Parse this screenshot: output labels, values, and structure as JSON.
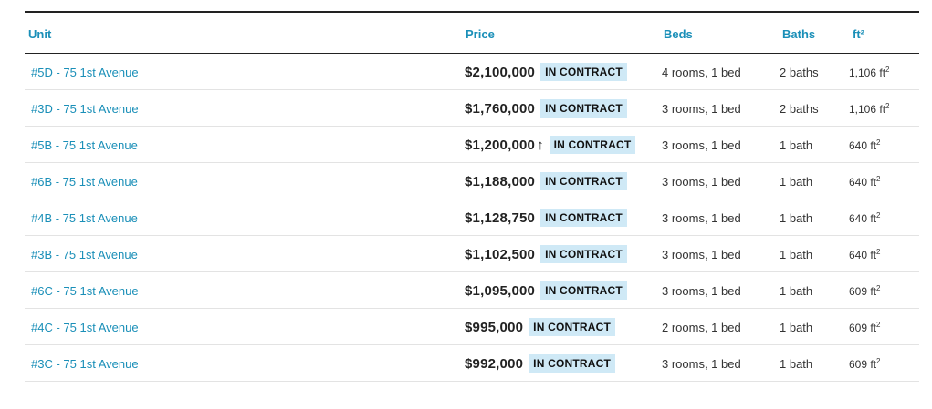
{
  "header": {
    "unit": "Unit",
    "price": "Price",
    "beds": "Beds",
    "baths": "Baths",
    "sqft": "ft²"
  },
  "rows": [
    {
      "unit": "#5D - 75 1st Avenue",
      "price": "$2,100,000",
      "arrow": "",
      "status": "IN CONTRACT",
      "beds": "4 rooms, 1 bed",
      "baths": "2 baths",
      "sqft": "1,106 ft²"
    },
    {
      "unit": "#3D - 75 1st Avenue",
      "price": "$1,760,000",
      "arrow": "",
      "status": "IN CONTRACT",
      "beds": "3 rooms, 1 bed",
      "baths": "2 baths",
      "sqft": "1,106 ft²"
    },
    {
      "unit": "#5B - 75 1st Avenue",
      "price": "$1,200,000",
      "arrow": "↑",
      "status": "IN CONTRACT",
      "beds": "3 rooms, 1 bed",
      "baths": "1 bath",
      "sqft": "640 ft²"
    },
    {
      "unit": "#6B - 75 1st Avenue",
      "price": "$1,188,000",
      "arrow": "",
      "status": "IN CONTRACT",
      "beds": "3 rooms, 1 bed",
      "baths": "1 bath",
      "sqft": "640 ft²"
    },
    {
      "unit": "#4B - 75 1st Avenue",
      "price": "$1,128,750",
      "arrow": "",
      "status": "IN CONTRACT",
      "beds": "3 rooms, 1 bed",
      "baths": "1 bath",
      "sqft": "640 ft²"
    },
    {
      "unit": "#3B - 75 1st Avenue",
      "price": "$1,102,500",
      "arrow": "",
      "status": "IN CONTRACT",
      "beds": "3 rooms, 1 bed",
      "baths": "1 bath",
      "sqft": "640 ft²"
    },
    {
      "unit": "#6C - 75 1st Avenue",
      "price": "$1,095,000",
      "arrow": "",
      "status": "IN CONTRACT",
      "beds": "3 rooms, 1 bed",
      "baths": "1 bath",
      "sqft": "609 ft²"
    },
    {
      "unit": "#4C - 75 1st Avenue",
      "price": "$995,000",
      "arrow": "",
      "status": "IN CONTRACT",
      "beds": "2 rooms, 1 bed",
      "baths": "1 bath",
      "sqft": "609 ft²"
    },
    {
      "unit": "#3C - 75 1st Avenue",
      "price": "$992,000",
      "arrow": "",
      "status": "IN CONTRACT",
      "beds": "3 rooms, 1 bed",
      "baths": "1 bath",
      "sqft": "609 ft²"
    }
  ],
  "colors": {
    "link": "#1a8fb8",
    "badge_bg": "#cfe9f6"
  }
}
